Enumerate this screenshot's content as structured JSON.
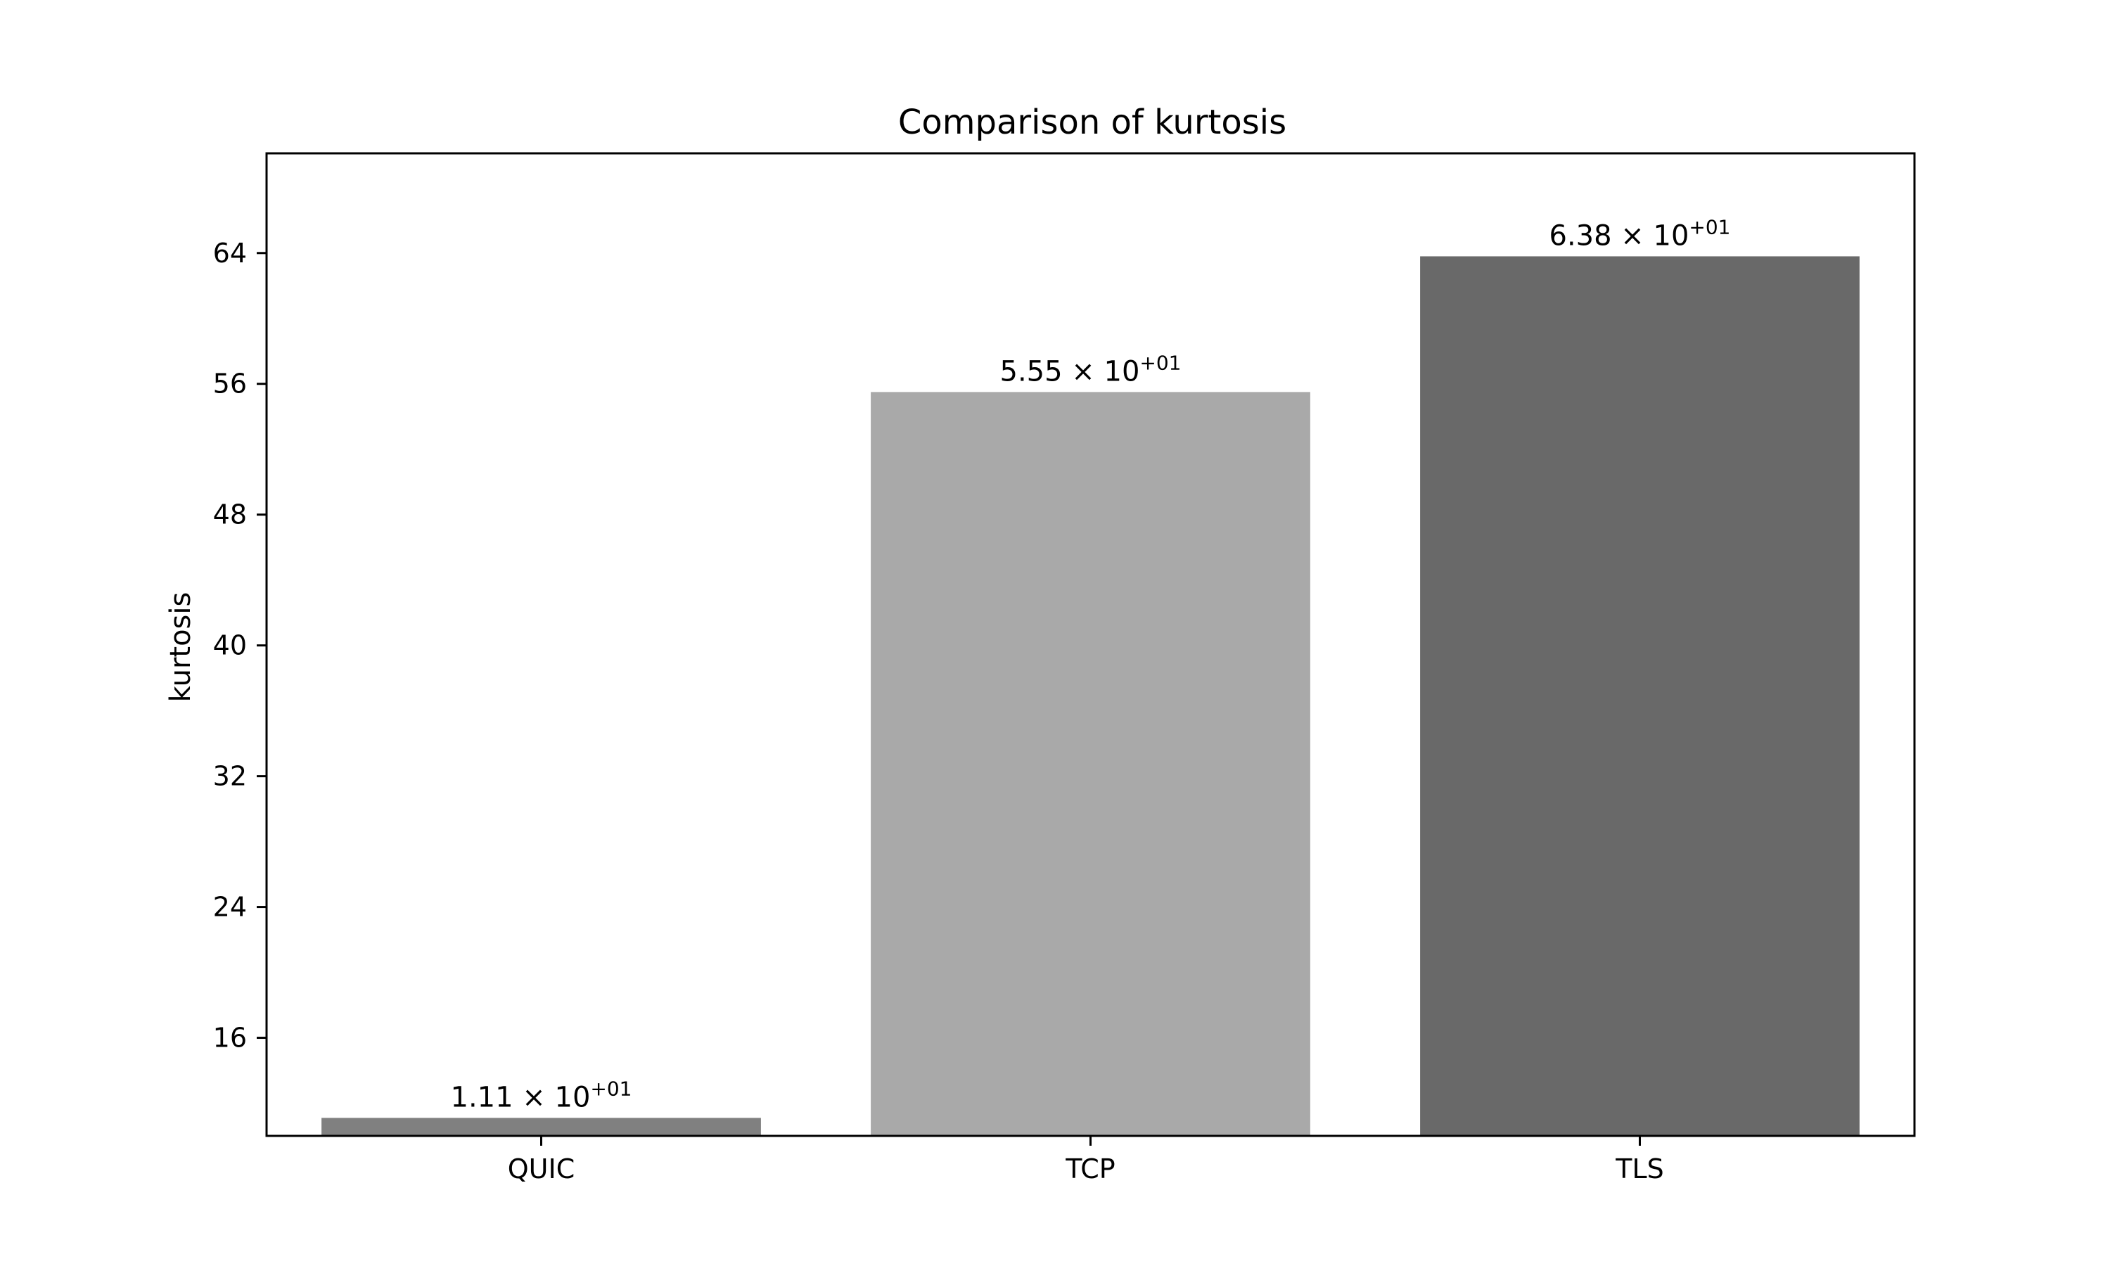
{
  "chart_data": {
    "type": "bar",
    "title": "Comparison of kurtosis",
    "xlabel": "",
    "ylabel": "kurtosis",
    "categories": [
      "QUIC",
      "TCP",
      "TLS"
    ],
    "values": [
      11.1,
      55.5,
      63.8
    ],
    "value_labels": [
      {
        "mantissa": "1.11",
        "times": "×",
        "base": "10",
        "exponent": "+01"
      },
      {
        "mantissa": "5.55",
        "times": "×",
        "base": "10",
        "exponent": "+01"
      },
      {
        "mantissa": "6.38",
        "times": "×",
        "base": "10",
        "exponent": "+01"
      }
    ],
    "colors": [
      "#808080",
      "#a9a9a9",
      "#696969"
    ],
    "ylim": [
      10,
      70.1
    ],
    "yticks": [
      16,
      24,
      32,
      40,
      48,
      56,
      64
    ],
    "grid": false,
    "legend": "none"
  }
}
